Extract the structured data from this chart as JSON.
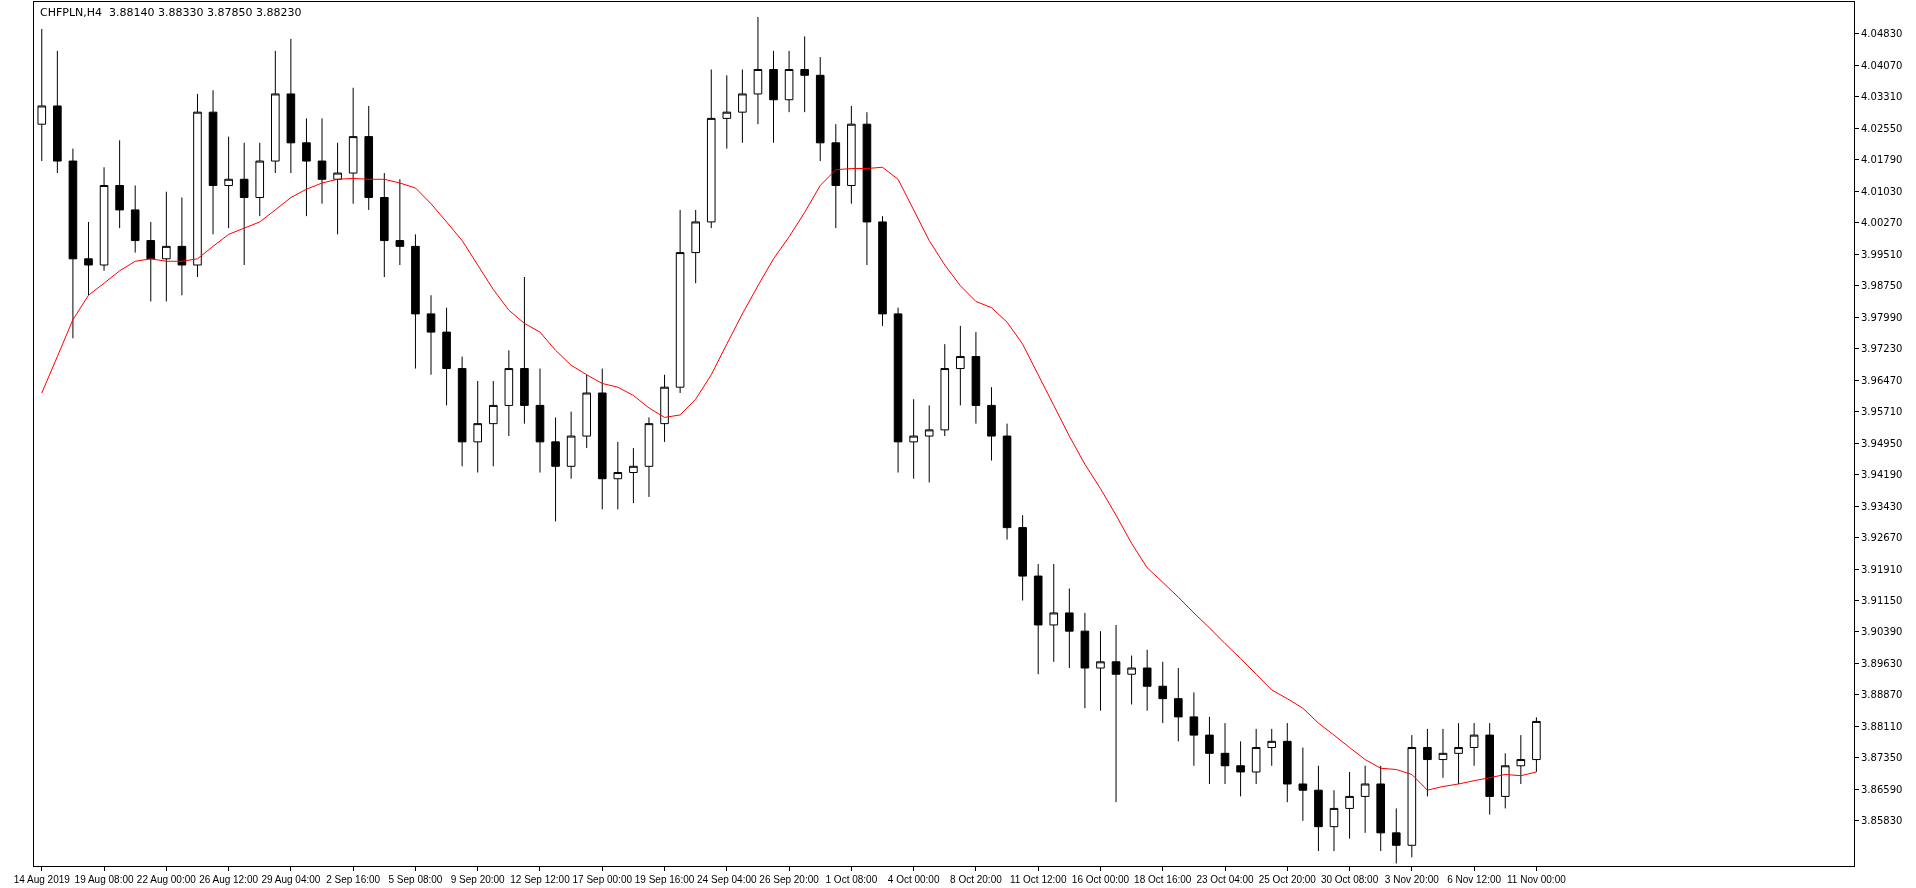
{
  "chart_data": {
    "type": "candlestick",
    "title": "CHFPLN,H4  3.88140 3.88330 3.87850 3.88230",
    "categories": [
      "14 Aug 2019",
      null,
      null,
      null,
      "19 Aug 08:00",
      null,
      null,
      null,
      "22 Aug 00:00",
      null,
      null,
      null,
      "26 Aug 12:00",
      null,
      null,
      null,
      "29 Aug 04:00",
      null,
      null,
      null,
      "2 Sep 16:00",
      null,
      null,
      null,
      "5 Sep 08:00",
      null,
      null,
      null,
      "9 Sep 20:00",
      null,
      null,
      null,
      "12 Sep 12:00",
      null,
      null,
      null,
      "17 Sep 00:00",
      null,
      null,
      null,
      "19 Sep 16:00",
      null,
      null,
      null,
      "24 Sep 04:00",
      null,
      null,
      null,
      "26 Sep 20:00",
      null,
      null,
      null,
      "1 Oct 08:00",
      null,
      null,
      null,
      "4 Oct 00:00",
      null,
      null,
      null,
      "8 Oct 20:00",
      null,
      null,
      null,
      "11 Oct 12:00",
      null,
      null,
      null,
      "16 Oct 00:00",
      null,
      null,
      null,
      "18 Oct 16:00",
      null,
      null,
      null,
      "23 Oct 04:00",
      null,
      null,
      null,
      "25 Oct 20:00",
      null,
      null,
      null,
      "30 Oct 08:00",
      null,
      null,
      null,
      "3 Nov 20:00",
      null,
      null,
      null,
      "6 Nov 12:00",
      null,
      null,
      null,
      "11 Nov 00:00"
    ],
    "ohlc": [
      [
        4.0265,
        4.0495,
        4.0176,
        4.0309
      ],
      [
        4.0309,
        4.0442,
        4.0147,
        4.0176
      ],
      [
        4.0176,
        4.0206,
        3.9748,
        3.994
      ],
      [
        3.994,
        4.0029,
        3.9852,
        3.9925
      ],
      [
        3.9925,
        4.0161,
        3.9911,
        4.0117
      ],
      [
        4.0117,
        4.0226,
        4.0014,
        4.0058
      ],
      [
        4.0058,
        4.0117,
        3.9955,
        3.9984
      ],
      [
        3.9984,
        4.0029,
        3.9837,
        3.994
      ],
      [
        3.994,
        4.0102,
        3.9837,
        3.997
      ],
      [
        3.997,
        4.0088,
        3.9852,
        3.9925
      ],
      [
        3.9925,
        4.0338,
        3.9896,
        4.0294
      ],
      [
        4.0294,
        4.0347,
        3.9999,
        4.0117
      ],
      [
        4.0117,
        4.0235,
        4.0014,
        4.0132
      ],
      [
        4.0132,
        4.022,
        3.9925,
        4.0088
      ],
      [
        4.0088,
        4.022,
        4.0043,
        4.0176
      ],
      [
        4.0176,
        4.0442,
        4.0147,
        4.0338
      ],
      [
        4.0338,
        4.0471,
        4.0147,
        4.022
      ],
      [
        4.022,
        4.0279,
        4.0043,
        4.0176
      ],
      [
        4.0176,
        4.0279,
        4.0073,
        4.0132
      ],
      [
        4.0132,
        4.022,
        3.9999,
        4.0147
      ],
      [
        4.0147,
        4.0353,
        4.0073,
        4.0235
      ],
      [
        4.0235,
        4.0309,
        4.0058,
        4.0088
      ],
      [
        4.0088,
        4.0147,
        3.9896,
        3.9984
      ],
      [
        3.9984,
        4.0132,
        3.9925,
        3.997
      ],
      [
        3.997,
        3.9999,
        3.9675,
        3.9807
      ],
      [
        3.9807,
        3.9852,
        3.966,
        3.9763
      ],
      [
        3.9763,
        3.9822,
        3.9586,
        3.9675
      ],
      [
        3.9675,
        3.9704,
        3.9439,
        3.9498
      ],
      [
        3.9498,
        3.9645,
        3.9424,
        3.9542
      ],
      [
        3.9542,
        3.9645,
        3.9439,
        3.9586
      ],
      [
        3.9586,
        3.9719,
        3.9512,
        3.9675
      ],
      [
        3.9675,
        3.9896,
        3.9542,
        3.9586
      ],
      [
        3.9586,
        3.9675,
        3.9424,
        3.9498
      ],
      [
        3.9498,
        3.9557,
        3.9306,
        3.9439
      ],
      [
        3.9439,
        3.9571,
        3.9409,
        3.9512
      ],
      [
        3.9512,
        3.966,
        3.9483,
        3.9616
      ],
      [
        3.9616,
        3.9675,
        3.9335,
        3.9409
      ],
      [
        3.9409,
        3.9498,
        3.9335,
        3.9424
      ],
      [
        3.9424,
        3.9483,
        3.935,
        3.9439
      ],
      [
        3.9439,
        3.9557,
        3.9365,
        3.9542
      ],
      [
        3.9542,
        3.966,
        3.9498,
        3.963
      ],
      [
        3.963,
        4.0058,
        3.9616,
        3.9955
      ],
      [
        3.9955,
        4.0058,
        3.9881,
        4.0029
      ],
      [
        4.0029,
        4.0397,
        4.0014,
        4.0279
      ],
      [
        4.0279,
        4.0383,
        4.0206,
        4.0294
      ],
      [
        4.0294,
        4.0397,
        4.022,
        4.0338
      ],
      [
        4.0338,
        4.0524,
        4.0265,
        4.0397
      ],
      [
        4.0397,
        4.0442,
        4.022,
        4.0324
      ],
      [
        4.0324,
        4.0442,
        4.0294,
        4.0397
      ],
      [
        4.0397,
        4.0477,
        4.0294,
        4.0383
      ],
      [
        4.0383,
        4.0427,
        4.0176,
        4.022
      ],
      [
        4.022,
        4.0265,
        4.0014,
        4.0117
      ],
      [
        4.0117,
        4.0309,
        4.0073,
        4.0265
      ],
      [
        4.0265,
        4.0294,
        3.9925,
        4.0029
      ],
      [
        4.0029,
        4.0043,
        3.9778,
        3.9807
      ],
      [
        3.9807,
        3.9822,
        3.9424,
        3.9498
      ],
      [
        3.9498,
        3.9601,
        3.9409,
        3.9512
      ],
      [
        3.9512,
        3.9586,
        3.94,
        3.9527
      ],
      [
        3.9527,
        3.9734,
        3.9512,
        3.9675
      ],
      [
        3.9675,
        3.9778,
        3.9586,
        3.9704
      ],
      [
        3.9704,
        3.9763,
        3.9542,
        3.9586
      ],
      [
        3.9586,
        3.963,
        3.9453,
        3.9512
      ],
      [
        3.9512,
        3.9542,
        3.9262,
        3.9291
      ],
      [
        3.9291,
        3.9321,
        3.9115,
        3.9174
      ],
      [
        3.9174,
        3.9203,
        3.8937,
        3.9056
      ],
      [
        3.9056,
        3.9203,
        3.8967,
        3.9085
      ],
      [
        3.9085,
        3.9144,
        3.8952,
        3.9041
      ],
      [
        3.9041,
        3.9085,
        3.8855,
        3.8952
      ],
      [
        3.8952,
        3.9041,
        3.8849,
        3.8967
      ],
      [
        3.8967,
        3.9056,
        3.8628,
        3.8937
      ],
      [
        3.8937,
        3.8982,
        3.8864,
        3.8952
      ],
      [
        3.8952,
        3.8996,
        3.8849,
        3.8908
      ],
      [
        3.8908,
        3.8967,
        3.8819,
        3.8878
      ],
      [
        3.8878,
        3.8952,
        3.8775,
        3.8834
      ],
      [
        3.8834,
        3.8893,
        3.8716,
        3.879
      ],
      [
        3.879,
        3.8834,
        3.8672,
        3.8746
      ],
      [
        3.8746,
        3.8819,
        3.8672,
        3.8716
      ],
      [
        3.8716,
        3.8775,
        3.8642,
        3.8701
      ],
      [
        3.8701,
        3.8805,
        3.8672,
        3.876
      ],
      [
        3.876,
        3.8805,
        3.8716,
        3.8775
      ],
      [
        3.8775,
        3.8819,
        3.8628,
        3.8672
      ],
      [
        3.8672,
        3.876,
        3.8583,
        3.8657
      ],
      [
        3.8657,
        3.8716,
        3.851,
        3.8569
      ],
      [
        3.8569,
        3.8657,
        3.851,
        3.8613
      ],
      [
        3.8613,
        3.8701,
        3.854,
        3.8642
      ],
      [
        3.8642,
        3.8716,
        3.8554,
        3.8672
      ],
      [
        3.8672,
        3.8716,
        3.851,
        3.8554
      ],
      [
        3.8554,
        3.8613,
        3.848,
        3.8524
      ],
      [
        3.8524,
        3.879,
        3.8495,
        3.876
      ],
      [
        3.876,
        3.8805,
        3.8642,
        3.8731
      ],
      [
        3.8731,
        3.8805,
        3.8687,
        3.8746
      ],
      [
        3.8746,
        3.8819,
        3.8672,
        3.876
      ],
      [
        3.876,
        3.8819,
        3.8716,
        3.879
      ],
      [
        3.879,
        3.8819,
        3.8598,
        3.8642
      ],
      [
        3.8642,
        3.8746,
        3.8613,
        3.8716
      ],
      [
        3.8716,
        3.879,
        3.8672,
        3.8731
      ],
      [
        3.8731,
        3.8833,
        3.8701,
        3.8823
      ]
    ],
    "series": [
      {
        "type": "line",
        "color": "#ff0000",
        "values": [
          3.9616,
          3.9704,
          3.9793,
          3.9852,
          3.9881,
          3.9911,
          3.9934,
          3.994,
          3.9934,
          3.9934,
          3.994,
          3.997,
          3.9999,
          4.0014,
          4.0029,
          4.0058,
          4.0088,
          4.0108,
          4.0123,
          4.0132,
          4.0134,
          4.0132,
          4.0132,
          4.0123,
          4.0111,
          4.0073,
          4.0029,
          3.9984,
          3.9925,
          3.9866,
          3.9816,
          3.9784,
          3.9763,
          3.9719,
          3.9683,
          3.966,
          3.9639,
          3.963,
          3.961,
          3.958,
          3.9557,
          3.9563,
          3.9601,
          3.966,
          3.9734,
          3.9807,
          3.9875,
          3.994,
          3.9993,
          4.0052,
          4.0117,
          4.0155,
          4.0158,
          4.0158,
          4.0161,
          4.0132,
          4.0058,
          3.9984,
          3.9925,
          3.9875,
          3.9837,
          3.9822,
          3.9787,
          3.9734,
          3.966,
          3.9586,
          3.9512,
          3.9444,
          3.9385,
          3.9321,
          3.9253,
          3.9194,
          3.9159,
          3.9123,
          3.9085,
          3.9049,
          3.9011,
          3.8975,
          3.8937,
          3.8899,
          3.8878,
          3.8855,
          3.8819,
          3.879,
          3.876,
          3.8731,
          3.871,
          3.8707,
          3.8695,
          3.8657,
          3.8666,
          3.8672,
          3.868,
          3.8687,
          3.8695,
          3.8692,
          3.8701
        ]
      }
    ],
    "ylim": [
      3.8474,
      4.056
    ],
    "yticks": [
      {
        "value": 3.8583,
        "label": "3.85830"
      },
      {
        "value": 3.8659,
        "label": "3.86590"
      },
      {
        "value": 3.8735,
        "label": "3.87350"
      },
      {
        "value": 3.8811,
        "label": "3.88110"
      },
      {
        "value": 3.8887,
        "label": "3.88870"
      },
      {
        "value": 3.8963,
        "label": "3.89630"
      },
      {
        "value": 3.9039,
        "label": "3.90390"
      },
      {
        "value": 3.9115,
        "label": "3.91150"
      },
      {
        "value": 3.9191,
        "label": "3.91910"
      },
      {
        "value": 3.9267,
        "label": "3.92670"
      },
      {
        "value": 3.9343,
        "label": "3.93430"
      },
      {
        "value": 3.9419,
        "label": "3.94190"
      },
      {
        "value": 3.9495,
        "label": "3.94950"
      },
      {
        "value": 3.9571,
        "label": "3.95710"
      },
      {
        "value": 3.9647,
        "label": "3.96470"
      },
      {
        "value": 3.9723,
        "label": "3.97230"
      },
      {
        "value": 3.9799,
        "label": "3.97990"
      },
      {
        "value": 3.9875,
        "label": "3.98750"
      },
      {
        "value": 3.9951,
        "label": "3.99510"
      },
      {
        "value": 4.0027,
        "label": "4.00270"
      },
      {
        "value": 4.0103,
        "label": "4.01030"
      },
      {
        "value": 4.0179,
        "label": "4.01790"
      },
      {
        "value": 4.0255,
        "label": "4.02550"
      },
      {
        "value": 4.0331,
        "label": "4.03310"
      },
      {
        "value": 4.0407,
        "label": "4.04070"
      },
      {
        "value": 4.0483,
        "label": "4.04830"
      }
    ]
  }
}
